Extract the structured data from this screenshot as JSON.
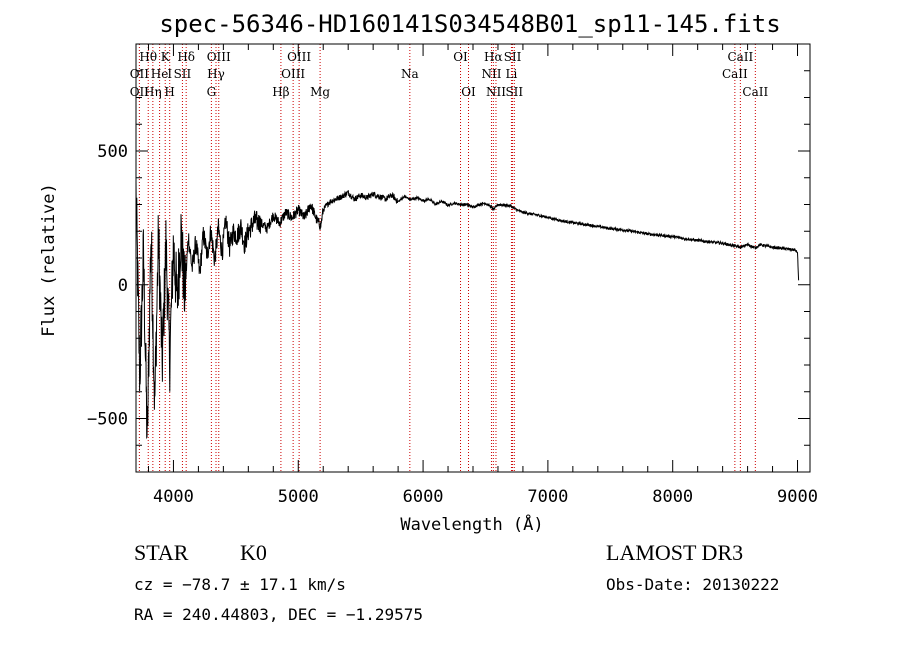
{
  "chart_data": {
    "type": "line",
    "title": "spec-56346-HD160141S034548B01_sp11-145.fits",
    "xlabel": "Wavelength (Å)",
    "ylabel": "Flux (relative)",
    "xlim": [
      3700,
      9100
    ],
    "ylim": [
      -700,
      900
    ],
    "xticks": [
      4000,
      5000,
      6000,
      7000,
      8000,
      9000
    ],
    "yticks": [
      -500,
      0,
      500
    ],
    "xtick_labels": [
      "4000",
      "5000",
      "6000",
      "7000",
      "8000",
      "9000"
    ],
    "ytick_labels": [
      "−500",
      "0",
      "500"
    ],
    "series": [
      {
        "name": "flux",
        "x": [
          3700,
          3730,
          3760,
          3790,
          3820,
          3850,
          3880,
          3910,
          3940,
          3970,
          4000,
          4030,
          4060,
          4090,
          4120,
          4150,
          4180,
          4210,
          4240,
          4270,
          4300,
          4330,
          4360,
          4390,
          4420,
          4450,
          4480,
          4510,
          4540,
          4570,
          4600,
          4650,
          4700,
          4750,
          4800,
          4850,
          4900,
          4950,
          5000,
          5050,
          5100,
          5150,
          5180,
          5200,
          5250,
          5300,
          5350,
          5400,
          5450,
          5500,
          5550,
          5600,
          5650,
          5700,
          5750,
          5800,
          5850,
          5900,
          5950,
          6000,
          6050,
          6100,
          6150,
          6200,
          6250,
          6300,
          6350,
          6400,
          6450,
          6500,
          6550,
          6563,
          6600,
          6650,
          6700,
          6750,
          6800,
          6900,
          7000,
          7100,
          7200,
          7300,
          7400,
          7500,
          7600,
          7700,
          7800,
          7900,
          8000,
          8100,
          8200,
          8300,
          8400,
          8500,
          8542,
          8600,
          8662,
          8700,
          8800,
          8900,
          8980,
          9000,
          9010
        ],
        "values": [
          350,
          -350,
          120,
          -600,
          200,
          -450,
          180,
          -300,
          150,
          -280,
          150,
          -60,
          200,
          -40,
          180,
          60,
          160,
          40,
          190,
          110,
          200,
          90,
          210,
          120,
          240,
          140,
          200,
          180,
          220,
          150,
          200,
          240,
          230,
          210,
          260,
          230,
          270,
          250,
          280,
          250,
          300,
          240,
          220,
          280,
          310,
          320,
          330,
          345,
          320,
          335,
          325,
          340,
          330,
          320,
          335,
          310,
          330,
          318,
          325,
          315,
          320,
          300,
          312,
          298,
          305,
          300,
          300,
          290,
          300,
          305,
          290,
          280,
          300,
          298,
          295,
          280,
          270,
          262,
          252,
          240,
          232,
          225,
          218,
          210,
          205,
          198,
          190,
          185,
          180,
          172,
          166,
          160,
          155,
          145,
          140,
          150,
          138,
          150,
          140,
          135,
          130,
          120,
          0
        ]
      }
    ],
    "line_markers": [
      {
        "name": "Hθ",
        "wl": 3798,
        "row": 0
      },
      {
        "name": "OII",
        "wl": 3727,
        "row": 1
      },
      {
        "name": "OII",
        "wl": 3727,
        "row": 2
      },
      {
        "name": "He",
        "wl": 3889,
        "row": 1
      },
      {
        "name": "Hη",
        "wl": 3835,
        "row": 2
      },
      {
        "name": "K",
        "wl": 3934,
        "row": 0
      },
      {
        "name": "I",
        "wl": 3970,
        "row": 1
      },
      {
        "name": "H",
        "wl": 3969,
        "row": 2
      },
      {
        "name": "Hδ",
        "wl": 4102,
        "row": 0
      },
      {
        "name": "SII",
        "wl": 4072,
        "row": 1
      },
      {
        "name": "OIII",
        "wl": 4363,
        "row": 0
      },
      {
        "name": "Hγ",
        "wl": 4341,
        "row": 1
      },
      {
        "name": "G",
        "wl": 4304,
        "row": 2
      },
      {
        "name": "Hβ",
        "wl": 4861,
        "row": 2
      },
      {
        "name": "OIII",
        "wl": 5007,
        "row": 0
      },
      {
        "name": "OIII",
        "wl": 4959,
        "row": 1
      },
      {
        "name": "Mg",
        "wl": 5175,
        "row": 2
      },
      {
        "name": "Na",
        "wl": 5894,
        "row": 1
      },
      {
        "name": "OI",
        "wl": 6300,
        "row": 0
      },
      {
        "name": "OI",
        "wl": 6364,
        "row": 2
      },
      {
        "name": "Hα",
        "wl": 6563,
        "row": 0
      },
      {
        "name": "NII",
        "wl": 6548,
        "row": 1
      },
      {
        "name": "NII",
        "wl": 6584,
        "row": 2
      },
      {
        "name": "SII",
        "wl": 6717,
        "row": 0
      },
      {
        "name": "Li",
        "wl": 6708,
        "row": 1
      },
      {
        "name": "SII",
        "wl": 6731,
        "row": 2
      },
      {
        "name": "CaII",
        "wl": 8542,
        "row": 0
      },
      {
        "name": "CaII",
        "wl": 8498,
        "row": 1
      },
      {
        "name": "CaII",
        "wl": 8662,
        "row": 2
      }
    ]
  },
  "info": {
    "class": "STAR",
    "subclass": "K0",
    "survey": "LAMOST DR3",
    "cz": "cz = −78.7 ± 17.1 km/s",
    "obs_date": "Obs-Date: 20130222",
    "coords": "RA = 240.44803, DEC =  −1.29575"
  },
  "colors": {
    "spectrum": "#000000",
    "marker_line": "#cc0000",
    "text": "#000000",
    "background": "#ffffff"
  }
}
